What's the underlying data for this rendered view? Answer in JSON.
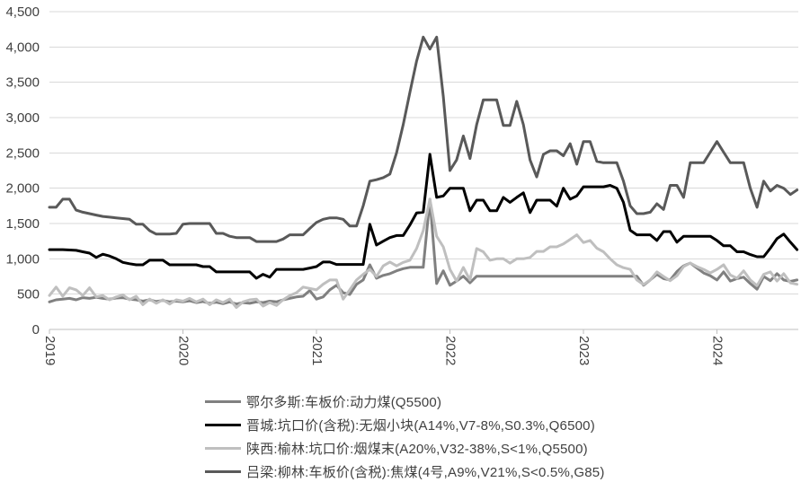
{
  "chart_data": {
    "type": "line",
    "title": "",
    "grid": "horizontal",
    "legend_position": "bottom-left",
    "x_axis": {
      "tick_labels": [
        "2019",
        "2020",
        "2021",
        "2022",
        "2023",
        "2024"
      ],
      "x_start": 2019,
      "x_step": 0.05,
      "points": 113,
      "range": [
        2019,
        2024.6
      ]
    },
    "y_axis": {
      "min": 0,
      "max": 4500,
      "tick_interval": 500,
      "tick_labels": [
        "0",
        "500",
        "1,000",
        "1,500",
        "2,000",
        "2,500",
        "3,000",
        "3,500",
        "4,000",
        "4,500"
      ]
    },
    "series": [
      {
        "name": "鄂尔多斯:车板价:动力煤(Q5500)",
        "color": "#808080",
        "values": [
          390,
          420,
          430,
          440,
          420,
          450,
          440,
          455,
          440,
          430,
          445,
          450,
          430,
          420,
          400,
          420,
          395,
          410,
          390,
          400,
          390,
          405,
          380,
          395,
          370,
          385,
          365,
          390,
          360,
          380,
          370,
          390,
          380,
          400,
          390,
          420,
          440,
          460,
          470,
          550,
          430,
          460,
          560,
          625,
          520,
          495,
          640,
          700,
          915,
          725,
          765,
          790,
          830,
          860,
          880,
          880,
          880,
          1845,
          650,
          830,
          625,
          685,
          754,
          660,
          754,
          754,
          754,
          754,
          754,
          754,
          754,
          754,
          754,
          754,
          754,
          754,
          754,
          754,
          754,
          754,
          754,
          754,
          754,
          754,
          754,
          754,
          754,
          754,
          754,
          625,
          700,
          780,
          720,
          700,
          820,
          900,
          940,
          870,
          800,
          760,
          700,
          815,
          685,
          720,
          740,
          650,
          570,
          750,
          690,
          790,
          700,
          680,
          700
        ]
      },
      {
        "name": "晋城:坑口价(含税):无烟小块(A14%,V7-8%,S0.3%,Q6500)",
        "color": "#000000",
        "values": [
          1130,
          1130,
          1130,
          1125,
          1120,
          1100,
          1080,
          1020,
          1065,
          1040,
          1000,
          950,
          930,
          915,
          915,
          980,
          980,
          980,
          915,
          915,
          915,
          915,
          915,
          890,
          890,
          815,
          815,
          815,
          815,
          815,
          815,
          725,
          780,
          740,
          850,
          850,
          850,
          850,
          850,
          870,
          890,
          955,
          955,
          920,
          920,
          920,
          920,
          920,
          1490,
          1195,
          1250,
          1300,
          1330,
          1330,
          1480,
          1650,
          1660,
          2480,
          1870,
          1890,
          2000,
          2000,
          2000,
          1680,
          1830,
          1830,
          1680,
          1680,
          1870,
          1800,
          1870,
          1935,
          1655,
          1830,
          1830,
          1830,
          1745,
          2000,
          1845,
          1890,
          2020,
          2020,
          2020,
          2020,
          2040,
          2000,
          1800,
          1405,
          1340,
          1340,
          1340,
          1260,
          1385,
          1385,
          1235,
          1320,
          1320,
          1320,
          1320,
          1320,
          1260,
          1185,
          1185,
          1100,
          1100,
          1060,
          1030,
          1030,
          1150,
          1285,
          1350,
          1235,
          1130
        ]
      },
      {
        "name": "陕西:榆林:坑口价:烟煤末(A20%,V32-38%,S<1%,Q5500)",
        "color": "#bfbfbf",
        "values": [
          480,
          600,
          470,
          590,
          560,
          480,
          590,
          460,
          480,
          420,
          460,
          490,
          420,
          470,
          350,
          430,
          370,
          420,
          360,
          420,
          400,
          440,
          390,
          430,
          350,
          420,
          380,
          430,
          310,
          390,
          420,
          430,
          330,
          380,
          340,
          420,
          480,
          520,
          600,
          580,
          560,
          640,
          700,
          700,
          430,
          560,
          700,
          780,
          850,
          750,
          900,
          955,
          900,
          950,
          980,
          1145,
          1400,
          1845,
          1320,
          1170,
          850,
          685,
          877,
          700,
          1145,
          1100,
          980,
          1000,
          1000,
          940,
          1000,
          1000,
          1020,
          1105,
          1105,
          1170,
          1170,
          1210,
          1275,
          1340,
          1230,
          1260,
          1150,
          1100,
          1000,
          915,
          875,
          850,
          700,
          635,
          700,
          815,
          750,
          690,
          760,
          890,
          940,
          890,
          850,
          800,
          850,
          915,
          770,
          725,
          830,
          700,
          620,
          780,
          815,
          685,
          790,
          660,
          640
        ]
      },
      {
        "name": "吕梁:柳林:车板价(含税):焦煤(4号,A9%,V21%,S<0.5%,G85)",
        "color": "#595959",
        "values": [
          1730,
          1730,
          1845,
          1845,
          1690,
          1660,
          1640,
          1620,
          1600,
          1590,
          1580,
          1570,
          1560,
          1490,
          1490,
          1400,
          1350,
          1350,
          1350,
          1360,
          1490,
          1500,
          1500,
          1500,
          1500,
          1360,
          1360,
          1320,
          1300,
          1300,
          1300,
          1245,
          1245,
          1245,
          1245,
          1280,
          1340,
          1340,
          1340,
          1430,
          1515,
          1560,
          1580,
          1580,
          1560,
          1465,
          1465,
          1750,
          2100,
          2120,
          2150,
          2200,
          2500,
          2900,
          3360,
          3800,
          4140,
          3970,
          4140,
          3300,
          2250,
          2400,
          2740,
          2420,
          2900,
          3250,
          3250,
          3250,
          2890,
          2890,
          3230,
          2900,
          2400,
          2160,
          2480,
          2530,
          2530,
          2460,
          2630,
          2340,
          2660,
          2660,
          2380,
          2360,
          2360,
          2360,
          2100,
          1750,
          1640,
          1640,
          1660,
          1780,
          1700,
          2040,
          2040,
          1870,
          2360,
          2360,
          2360,
          2510,
          2660,
          2510,
          2360,
          2360,
          2360,
          2000,
          1730,
          2100,
          1960,
          2040,
          2000,
          1910,
          1975
        ]
      }
    ]
  },
  "colors": {
    "background": "#ffffff",
    "grid": "#d9d9d9",
    "axis": "#bfbfbf",
    "text": "#404040"
  }
}
